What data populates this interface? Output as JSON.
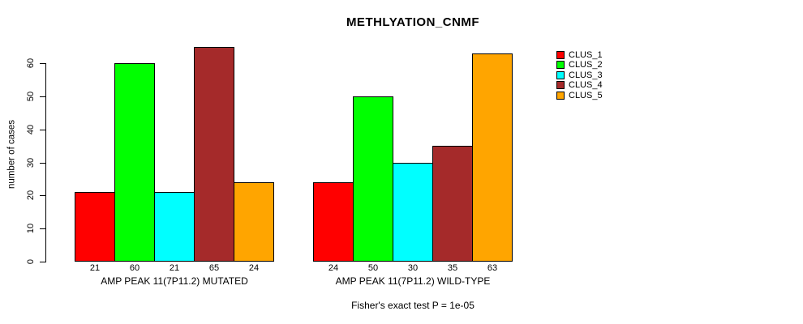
{
  "chart_data": {
    "type": "bar",
    "title": "METHLYATION_CNMF",
    "ylabel": "number of cases",
    "xlabel": "",
    "ylim": [
      0,
      65
    ],
    "yticks": [
      0,
      10,
      20,
      30,
      40,
      50,
      60
    ],
    "grid": false,
    "legend_position": "right",
    "categories": [
      "AMP PEAK 11(7P11.2) MUTATED",
      "AMP PEAK 11(7P11.2) WILD-TYPE"
    ],
    "series": [
      {
        "name": "CLUS_1",
        "color": "#ff0000",
        "values": [
          21,
          24
        ]
      },
      {
        "name": "CLUS_2",
        "color": "#00ff00",
        "values": [
          60,
          50
        ]
      },
      {
        "name": "CLUS_3",
        "color": "#00ffff",
        "values": [
          21,
          30
        ]
      },
      {
        "name": "CLUS_4",
        "color": "#a52a2a",
        "values": [
          65,
          35
        ]
      },
      {
        "name": "CLUS_5",
        "color": "#ffa500",
        "values": [
          24,
          63
        ]
      }
    ],
    "bar_value_labels": [
      [
        21,
        60,
        21,
        65,
        24
      ],
      [
        24,
        50,
        30,
        35,
        63
      ]
    ],
    "annotation": "Fisher's exact test P = 1e-05",
    "axis_color": "#000000",
    "background_color": "#ffffff"
  }
}
